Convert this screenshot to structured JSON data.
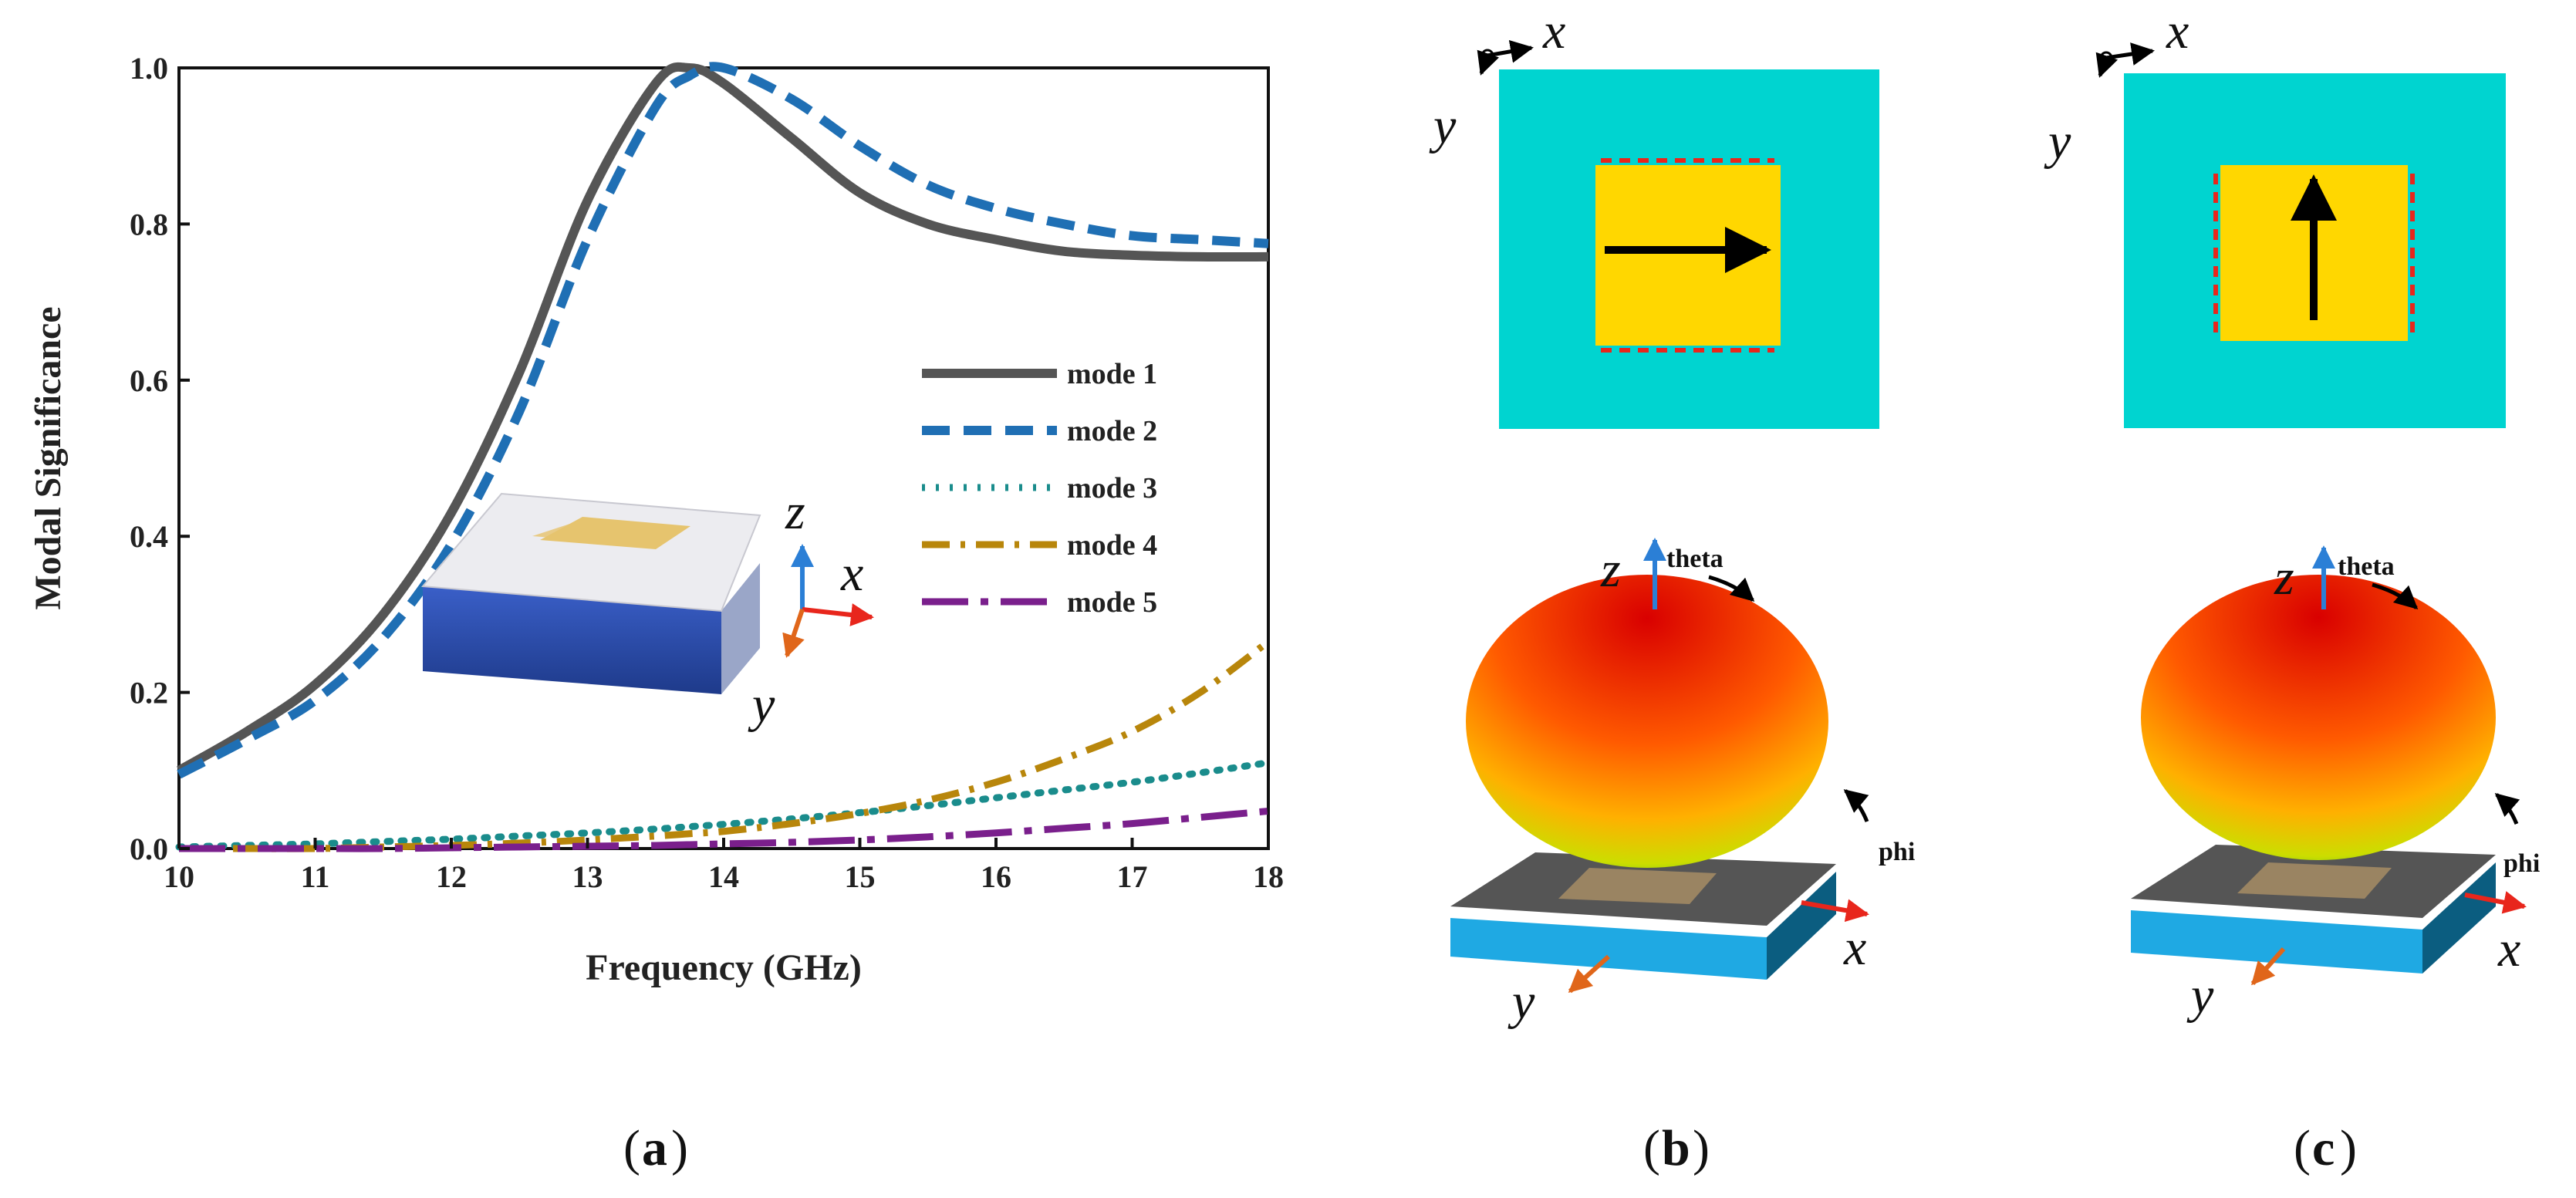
{
  "chart_data": {
    "type": "line",
    "title": "",
    "xlabel": "Frequency (GHz)",
    "ylabel": "Modal Significance",
    "xlim": [
      10,
      18
    ],
    "ylim": [
      0.0,
      1.0
    ],
    "xticks": [
      "10",
      "11",
      "12",
      "13",
      "14",
      "15",
      "16",
      "17",
      "18"
    ],
    "yticks": [
      "0.0",
      "0.2",
      "0.4",
      "0.6",
      "0.8",
      "1.0"
    ],
    "legend_position": "center-right",
    "x": [
      10,
      10.5,
      11,
      11.5,
      12,
      12.5,
      13,
      13.5,
      13.75,
      14,
      14.5,
      15,
      15.5,
      16,
      16.5,
      17,
      17.5,
      18
    ],
    "series": [
      {
        "name": "mode 1",
        "color": "#555555",
        "dash": "solid",
        "values": [
          0.1,
          0.15,
          0.21,
          0.3,
          0.43,
          0.61,
          0.83,
          0.98,
          1.0,
          0.98,
          0.91,
          0.84,
          0.8,
          0.78,
          0.765,
          0.76,
          0.758,
          0.758
        ]
      },
      {
        "name": "mode 2",
        "color": "#1f6fb4",
        "dash": "dashed",
        "values": [
          0.095,
          0.14,
          0.19,
          0.27,
          0.39,
          0.56,
          0.78,
          0.95,
          0.99,
          1.0,
          0.96,
          0.9,
          0.85,
          0.82,
          0.8,
          0.785,
          0.78,
          0.775
        ]
      },
      {
        "name": "mode 3",
        "color": "#1a8c8c",
        "dash": "dotted",
        "values": [
          0.002,
          0.004,
          0.006,
          0.009,
          0.012,
          0.016,
          0.02,
          0.025,
          0.028,
          0.031,
          0.038,
          0.046,
          0.055,
          0.065,
          0.075,
          0.085,
          0.097,
          0.11
        ]
      },
      {
        "name": "mode 4",
        "color": "#b8860b",
        "dash": "dashdot",
        "values": [
          0.0,
          0.0,
          0.0,
          0.002,
          0.004,
          0.007,
          0.011,
          0.016,
          0.019,
          0.022,
          0.032,
          0.045,
          0.062,
          0.085,
          0.115,
          0.15,
          0.2,
          0.265
        ]
      },
      {
        "name": "mode 5",
        "color": "#7a1f8c",
        "dash": "longdash",
        "values": [
          0.0,
          0.0,
          0.0,
          0.0,
          0.001,
          0.002,
          0.003,
          0.004,
          0.005,
          0.006,
          0.008,
          0.011,
          0.015,
          0.02,
          0.026,
          0.032,
          0.04,
          0.048
        ]
      }
    ]
  },
  "inset_axes": {
    "z": "z",
    "x": "x",
    "y": "y"
  },
  "panel_b": {
    "top_axes": {
      "x": "x",
      "y": "y"
    },
    "pattern_axes": {
      "z": "z",
      "x": "x",
      "y": "y"
    },
    "theta_label": "theta",
    "phi_label": "phi"
  },
  "panel_c": {
    "top_axes": {
      "x": "x",
      "y": "y"
    },
    "pattern_axes": {
      "z": "z",
      "x": "x",
      "y": "y"
    },
    "theta_label": "theta",
    "phi_label": "phi"
  },
  "panel_labels": {
    "a": "a",
    "b": "b",
    "c": "c"
  }
}
